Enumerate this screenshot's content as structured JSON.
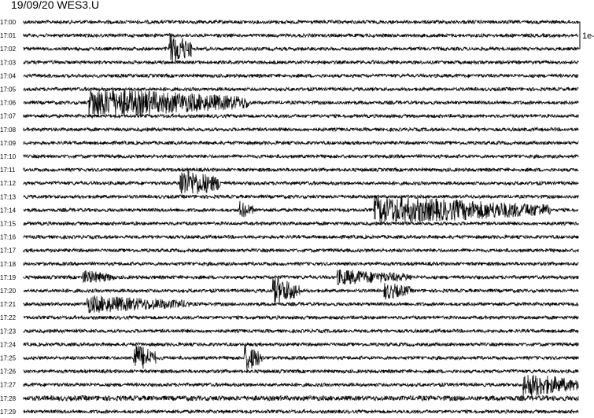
{
  "title": "19/09/20 WES3.U",
  "chart_data": {
    "type": "line",
    "title": "19/09/20 WES3.U",
    "row_labels": [
      "17:00",
      "17:01",
      "17:02",
      "17:03",
      "17:04",
      "17:05",
      "17:06",
      "17:07",
      "17:08",
      "17:09",
      "17:10",
      "17:11",
      "17:12",
      "17:13",
      "17:14",
      "17:15",
      "17:16",
      "17:17",
      "17:18",
      "17:19",
      "17:20",
      "17:21",
      "17:22",
      "17:23",
      "17:24",
      "17:25",
      "17:26",
      "17:27",
      "17:28",
      "17:29"
    ],
    "row_duration_seconds": 60,
    "scale_label": "1e-",
    "trace_color": "#000000",
    "events": [
      {
        "row": 2,
        "start_s": 15.8,
        "end_s": 18.3,
        "amplitude": 3.5
      },
      {
        "row": 6,
        "start_s": 7.2,
        "end_s": 24.5,
        "amplitude": 3.0
      },
      {
        "row": 12,
        "start_s": 17.0,
        "end_s": 21.5,
        "amplitude": 3.0
      },
      {
        "row": 14,
        "start_s": 23.5,
        "end_s": 25.0,
        "amplitude": 1.8
      },
      {
        "row": 14,
        "start_s": 38.0,
        "end_s": 57.0,
        "amplitude": 2.8
      },
      {
        "row": 19,
        "start_s": 6.5,
        "end_s": 10.0,
        "amplitude": 1.5
      },
      {
        "row": 19,
        "start_s": 34.0,
        "end_s": 42.0,
        "amplitude": 1.6
      },
      {
        "row": 20,
        "start_s": 27.0,
        "end_s": 30.0,
        "amplitude": 3.0
      },
      {
        "row": 20,
        "start_s": 39.0,
        "end_s": 42.0,
        "amplitude": 1.8
      },
      {
        "row": 21,
        "start_s": 7.0,
        "end_s": 18.0,
        "amplitude": 1.8
      },
      {
        "row": 25,
        "start_s": 12.0,
        "end_s": 14.5,
        "amplitude": 3.0
      },
      {
        "row": 25,
        "start_s": 24.0,
        "end_s": 26.0,
        "amplitude": 2.8
      },
      {
        "row": 27,
        "start_s": 54.0,
        "end_s": 60.0,
        "amplitude": 2.5
      }
    ]
  }
}
